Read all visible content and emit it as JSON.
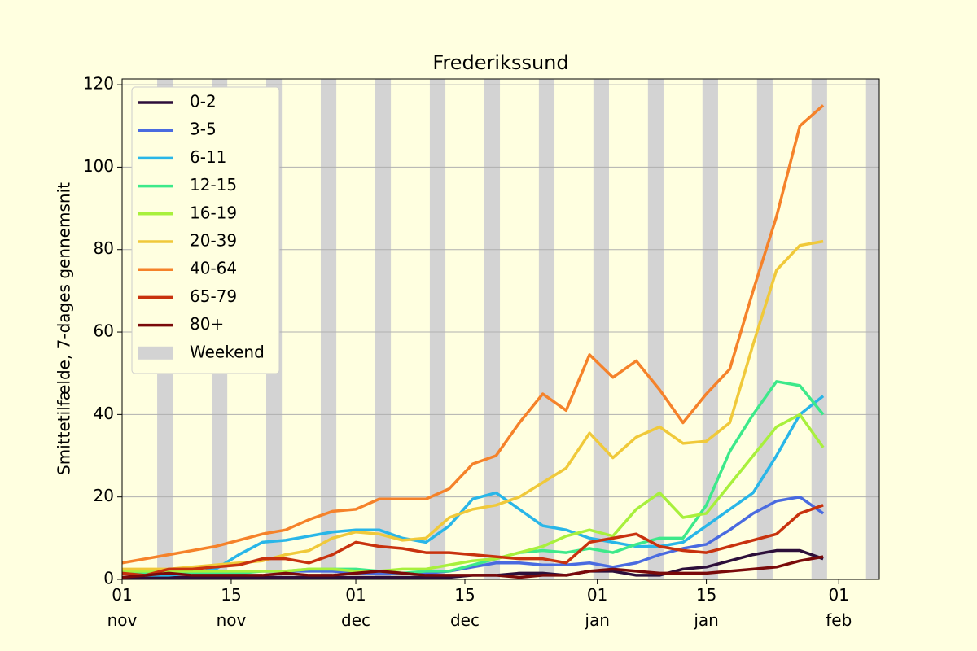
{
  "chart_data": {
    "type": "line",
    "title": "Frederikssund",
    "y_label": "Smittetilfælde, 7-dages gennemsnit",
    "x": [
      0,
      3,
      6,
      9,
      12,
      15,
      18,
      21,
      24,
      27,
      30,
      33,
      36,
      39,
      42,
      45,
      48,
      51,
      54,
      57,
      60,
      63,
      66,
      69,
      72,
      75,
      78,
      81,
      84,
      87,
      90
    ],
    "xlim": [
      0,
      97.2
    ],
    "xticks": [
      {
        "value": 0,
        "label": "01\nnov"
      },
      {
        "value": 14,
        "label": "15\nnov"
      },
      {
        "value": 30,
        "label": "01\ndec"
      },
      {
        "value": 44,
        "label": "15\ndec"
      },
      {
        "value": 61,
        "label": "01\njan"
      },
      {
        "value": 75,
        "label": "15\njan"
      },
      {
        "value": 92,
        "label": "01\nfeb"
      }
    ],
    "ylim": [
      0,
      121.4
    ],
    "yticks": [
      0,
      20,
      40,
      60,
      80,
      100,
      120
    ],
    "grid": true,
    "legend": "upper left",
    "series": [
      {
        "name": "0-2",
        "color": "#2d0f3a",
        "values": [
          0.5,
          0.5,
          0.5,
          0.5,
          0.5,
          0.5,
          0.5,
          0.5,
          0.5,
          0.5,
          0.5,
          0.5,
          0.5,
          0.5,
          0.5,
          1,
          1,
          1.5,
          1.5,
          1,
          2,
          2,
          1,
          1,
          2.5,
          3,
          4.5,
          6,
          7,
          7,
          5
        ]
      },
      {
        "name": "3-5",
        "color": "#4a6be0",
        "values": [
          1.5,
          1.5,
          1.5,
          1.5,
          2,
          2,
          2,
          2,
          2,
          2,
          1.5,
          1.5,
          1.5,
          1.5,
          2,
          3,
          4,
          4,
          3.5,
          3.5,
          4,
          3,
          4,
          6,
          7.5,
          8.5,
          12,
          16,
          19,
          20,
          16
        ]
      },
      {
        "name": "6-11",
        "color": "#29b6e8",
        "values": [
          1.5,
          1,
          1,
          1.5,
          2.5,
          6,
          9,
          9.5,
          10.5,
          11.5,
          12,
          12,
          10,
          9,
          13,
          19.5,
          21,
          17,
          13,
          12,
          10,
          9,
          8,
          8,
          9,
          13,
          17,
          21,
          30,
          40,
          44.5
        ]
      },
      {
        "name": "12-15",
        "color": "#3de98a",
        "values": [
          1.5,
          1.5,
          1.5,
          1.5,
          1.5,
          1.5,
          2,
          2,
          2.5,
          2.5,
          2.5,
          2,
          1.5,
          2,
          2,
          3.5,
          5,
          6.5,
          7,
          6.5,
          7.5,
          6.5,
          8.5,
          10,
          10,
          18,
          31,
          40,
          48,
          47,
          40
        ]
      },
      {
        "name": "16-19",
        "color": "#a8f03c",
        "values": [
          2,
          2,
          2,
          2,
          2,
          2,
          2,
          2,
          2.5,
          2.5,
          2,
          2,
          2.5,
          2.5,
          3.5,
          4.5,
          5,
          6.5,
          8,
          10.5,
          12,
          10.5,
          17,
          21,
          15,
          16,
          23,
          30,
          37,
          40,
          32
        ]
      },
      {
        "name": "20-39",
        "color": "#f0c93a",
        "values": [
          2.5,
          2.5,
          2.5,
          3,
          3.5,
          4,
          4.5,
          6,
          7,
          10,
          11.5,
          11,
          9.5,
          10,
          15,
          17,
          18,
          20,
          23.5,
          27,
          35.5,
          29.5,
          34.5,
          37,
          33,
          33.5,
          38,
          57,
          75,
          81,
          82
        ]
      },
      {
        "name": "40-64",
        "color": "#f5822a",
        "values": [
          4,
          5,
          6,
          7,
          8,
          9.5,
          11,
          12,
          14.5,
          16.5,
          17,
          19.5,
          19.5,
          19.5,
          22,
          28,
          30,
          38,
          45,
          41,
          54.5,
          49,
          53,
          46,
          38,
          45,
          51,
          70,
          88,
          110,
          115
        ]
      },
      {
        "name": "65-79",
        "color": "#c8320e",
        "values": [
          1.5,
          1,
          2.5,
          2.5,
          3,
          3.5,
          5,
          5,
          4,
          6,
          9,
          8,
          7.5,
          6.5,
          6.5,
          6,
          5.5,
          5,
          5,
          4,
          9,
          10,
          11,
          8,
          7,
          6.5,
          8,
          9.5,
          11,
          16,
          18
        ]
      },
      {
        "name": "80+",
        "color": "#7a0a0a",
        "values": [
          0.5,
          1,
          1.5,
          1,
          1,
          1,
          1,
          1.5,
          1,
          1,
          1.5,
          2,
          1.5,
          1,
          1,
          1,
          1,
          0.5,
          1,
          1,
          2,
          2.5,
          2,
          1.5,
          1.5,
          1.5,
          2,
          2.5,
          3,
          4.5,
          5.5
        ]
      }
    ],
    "weekend": {
      "name": "Weekend",
      "color": "#d3d3d3",
      "ranges": [
        [
          4.5,
          6.5
        ],
        [
          11.5,
          13.5
        ],
        [
          18.5,
          20.5
        ],
        [
          25.5,
          27.5
        ],
        [
          32.5,
          34.5
        ],
        [
          39.5,
          41.5
        ],
        [
          46.5,
          48.5
        ],
        [
          53.5,
          55.5
        ],
        [
          60.5,
          62.5
        ],
        [
          67.5,
          69.5
        ],
        [
          74.5,
          76.5
        ],
        [
          81.5,
          83.5
        ],
        [
          88.5,
          90.5
        ],
        [
          95.5,
          97.2
        ]
      ]
    }
  }
}
